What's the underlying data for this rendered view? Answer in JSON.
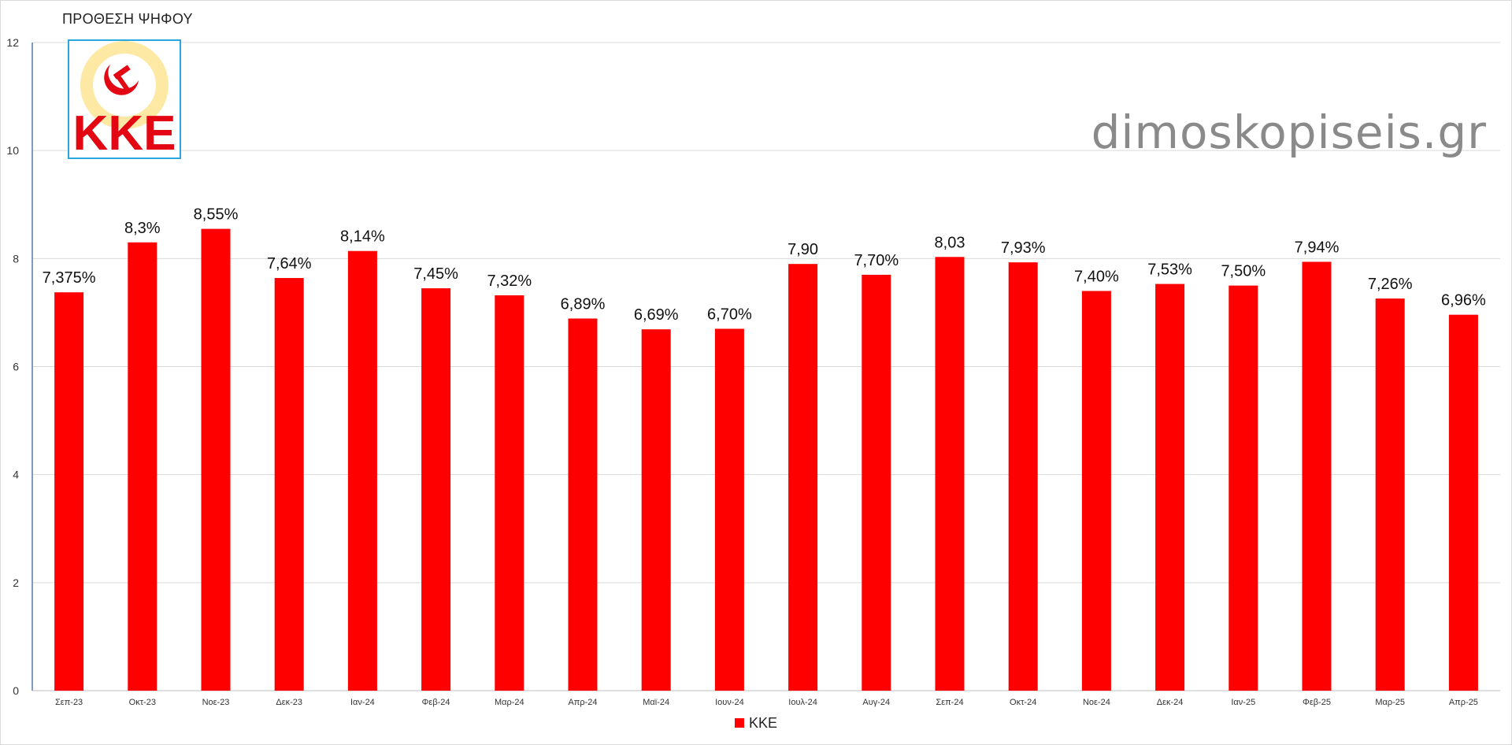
{
  "title": "ΠΡΟΘΕΣΗ ΨΗΦΟΥ",
  "watermark": "dimoskopiseis.gr",
  "logo": {
    "text": "KKE",
    "icon": "hammer-sickle-icon",
    "border_color": "#29a8e0",
    "color": "#e30613",
    "ray_color": "#f5c518"
  },
  "chart_data": {
    "type": "bar",
    "categories": [
      "Σεπ-23",
      "Οκτ-23",
      "Νοε-23",
      "Δεκ-23",
      "Ιαν-24",
      "Φεβ-24",
      "Μαρ-24",
      "Απρ-24",
      "Μαϊ-24",
      "Ιουν-24",
      "Ιουλ-24",
      "Αυγ-24",
      "Σεπ-24",
      "Οκτ-24",
      "Νοε-24",
      "Δεκ-24",
      "Ιαν-25",
      "Φεβ-25",
      "Μαρ-25",
      "Απρ-25"
    ],
    "series": [
      {
        "name": "KKE",
        "color": "#ff0000",
        "values": [
          7.375,
          8.3,
          8.55,
          7.64,
          8.14,
          7.45,
          7.32,
          6.89,
          6.69,
          6.7,
          7.9,
          7.7,
          8.03,
          7.93,
          7.4,
          7.53,
          7.5,
          7.94,
          7.26,
          6.96
        ],
        "labels": [
          "7,375%",
          "8,3%",
          "8,55%",
          "7,64%",
          "8,14%",
          "7,45%",
          "7,32%",
          "6,89%",
          "6,69%",
          "6,70%",
          "7,90",
          "7,70%",
          "8,03",
          "7,93%",
          "7,40%",
          "7,53%",
          "7,50%",
          "7,94%",
          "7,26%",
          "6,96%"
        ]
      }
    ],
    "ylim": [
      0,
      12
    ],
    "yticks": [
      "0",
      "2",
      "4",
      "6",
      "8",
      "10",
      "12"
    ],
    "grid": true,
    "legend": "bottom-center",
    "xlabel": "",
    "ylabel": ""
  }
}
